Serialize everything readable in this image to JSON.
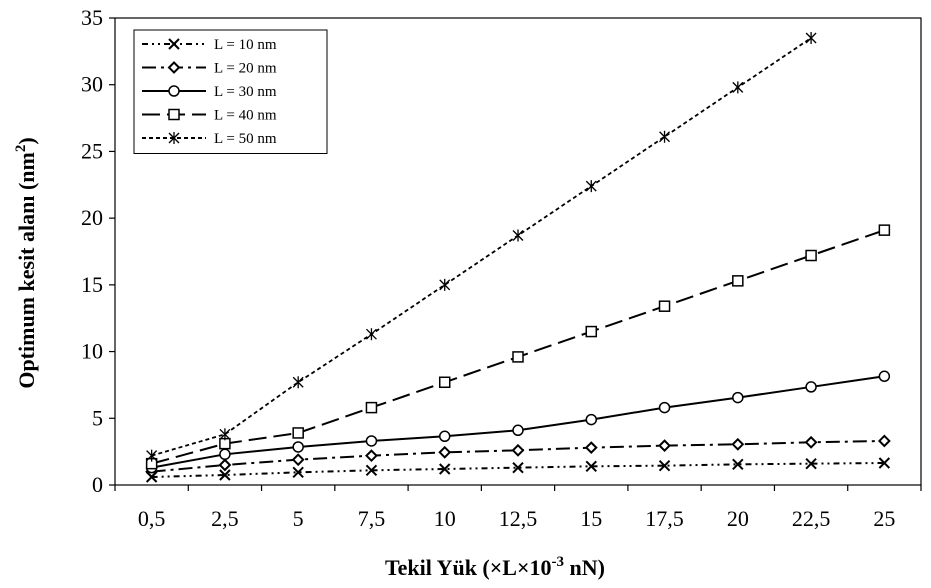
{
  "chart_data": {
    "type": "line",
    "ylabel": "Optimum kesit alanı (nm²)",
    "ylabel_main": "Optimum kesit alanı (nm",
    "ylabel_sup": "2",
    "ylabel_end": ")",
    "xlabel": "Tekil Yük (×L×10⁻³ nN)",
    "xlabel_main": "Tekil Yük (×L×10",
    "xlabel_sup": "-3",
    "xlabel_end": " nN)",
    "categories": [
      "0,5",
      "2,5",
      "5",
      "7,5",
      "10",
      "12,5",
      "15",
      "17,5",
      "20",
      "22,5",
      "25"
    ],
    "ylim": [
      0,
      35
    ],
    "yticks": [
      "0",
      "5",
      "10",
      "15",
      "20",
      "25",
      "30",
      "35"
    ],
    "grid": false,
    "legend_position": "top-left",
    "series": [
      {
        "name": "L = 10 nm",
        "marker": "x",
        "dash": "dashdotdot",
        "values": [
          0.6,
          0.75,
          0.95,
          1.1,
          1.2,
          1.3,
          1.4,
          1.45,
          1.55,
          1.6,
          1.65
        ]
      },
      {
        "name": "L = 20 nm",
        "marker": "diamond",
        "dash": "dashdot",
        "values": [
          1.0,
          1.5,
          1.9,
          2.2,
          2.45,
          2.6,
          2.8,
          2.95,
          3.05,
          3.2,
          3.3
        ]
      },
      {
        "name": "L = 30 nm",
        "marker": "circle",
        "dash": "solid",
        "values": [
          1.3,
          2.3,
          2.85,
          3.3,
          3.65,
          4.1,
          4.9,
          5.8,
          6.55,
          7.35,
          8.15
        ]
      },
      {
        "name": "L = 40 nm",
        "marker": "square",
        "dash": "longdash",
        "values": [
          1.6,
          3.1,
          3.9,
          5.8,
          7.7,
          9.6,
          11.5,
          13.4,
          15.3,
          17.2,
          19.1
        ]
      },
      {
        "name": "L = 50 nm",
        "marker": "asterisk",
        "dash": "shortdash",
        "values": [
          2.2,
          3.8,
          7.7,
          11.3,
          15.0,
          18.7,
          22.4,
          26.1,
          29.8,
          33.5,
          null
        ]
      }
    ]
  }
}
